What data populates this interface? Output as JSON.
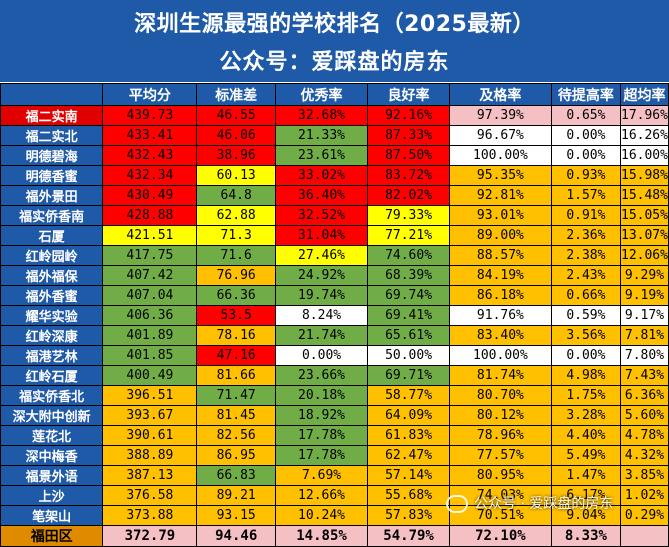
{
  "header": {
    "title": "深圳生源最强的学校排名（2025最新）",
    "subtitle": "公众号：爱踩盘的房东"
  },
  "colors": {
    "header_blue": "#1f5aa8",
    "red": "#ff0000",
    "yellow": "#ffff00",
    "orange": "#ffc000",
    "green": "#70ad47",
    "white": "#ffffff",
    "pink": "#f4c0c4"
  },
  "table": {
    "columns": [
      "",
      "平均分",
      "标准差",
      "优秀率",
      "良好率",
      "及格率",
      "待提高率",
      "超均率"
    ],
    "rows": [
      {
        "name": "福二实南",
        "values": [
          "439.73",
          "46.55",
          "32.68%",
          "92.16%",
          "97.39%",
          "0.65%",
          "17.96%"
        ],
        "colors": [
          "red",
          "red",
          "red",
          "red",
          "pink",
          "pink",
          "pink"
        ]
      },
      {
        "name": "福二实北",
        "values": [
          "433.41",
          "46.06",
          "21.33%",
          "87.33%",
          "96.67%",
          "0.00%",
          "16.26%"
        ],
        "colors": [
          "red",
          "red",
          "green",
          "red",
          "white",
          "white",
          "white"
        ]
      },
      {
        "name": "明德碧海",
        "values": [
          "432.43",
          "38.96",
          "23.61%",
          "87.50%",
          "100.00%",
          "0.00%",
          "16.00%"
        ],
        "colors": [
          "red",
          "red",
          "green",
          "red",
          "white",
          "white",
          "white"
        ]
      },
      {
        "name": "明德香蜜",
        "values": [
          "432.34",
          "60.13",
          "33.02%",
          "83.72%",
          "95.35%",
          "0.93%",
          "15.98%"
        ],
        "colors": [
          "red",
          "yellow",
          "red",
          "red",
          "orange",
          "orange",
          "orange"
        ]
      },
      {
        "name": "福外景田",
        "values": [
          "430.49",
          "64.8",
          "36.40%",
          "82.02%",
          "92.81%",
          "1.57%",
          "15.48%"
        ],
        "colors": [
          "red",
          "green",
          "red",
          "red",
          "orange",
          "orange",
          "orange"
        ]
      },
      {
        "name": "福实侨香南",
        "values": [
          "428.88",
          "62.88",
          "32.52%",
          "79.33%",
          "93.01%",
          "0.91%",
          "15.05%"
        ],
        "colors": [
          "red",
          "yellow",
          "red",
          "yellow",
          "orange",
          "orange",
          "orange"
        ]
      },
      {
        "name": "石厦",
        "values": [
          "421.51",
          "71.3",
          "31.04%",
          "77.21%",
          "89.00%",
          "2.36%",
          "13.07%"
        ],
        "colors": [
          "yellow",
          "yellow",
          "red",
          "yellow",
          "orange",
          "orange",
          "orange"
        ]
      },
      {
        "name": "红岭园岭",
        "values": [
          "417.75",
          "71.6",
          "27.46%",
          "74.60%",
          "88.57%",
          "2.38%",
          "12.06%"
        ],
        "colors": [
          "green",
          "green",
          "yellow",
          "green",
          "orange",
          "orange",
          "orange"
        ]
      },
      {
        "name": "福外福保",
        "values": [
          "407.42",
          "76.96",
          "24.92%",
          "68.39%",
          "84.19%",
          "2.43%",
          "9.29%"
        ],
        "colors": [
          "green",
          "orange",
          "green",
          "green",
          "orange",
          "orange",
          "orange"
        ]
      },
      {
        "name": "福外香蜜",
        "values": [
          "407.04",
          "66.36",
          "19.74%",
          "69.74%",
          "86.18%",
          "0.66%",
          "9.19%"
        ],
        "colors": [
          "green",
          "green",
          "green",
          "green",
          "orange",
          "orange",
          "orange"
        ]
      },
      {
        "name": "耀华实验",
        "values": [
          "406.36",
          "53.5",
          "8.24%",
          "69.41%",
          "91.76%",
          "0.59%",
          "9.17%"
        ],
        "colors": [
          "green",
          "red",
          "white",
          "green",
          "white",
          "white",
          "white"
        ]
      },
      {
        "name": "红岭深康",
        "values": [
          "401.89",
          "78.16",
          "21.74%",
          "65.61%",
          "83.40%",
          "3.56%",
          "7.81%"
        ],
        "colors": [
          "green",
          "orange",
          "green",
          "green",
          "orange",
          "orange",
          "orange"
        ]
      },
      {
        "name": "福港艺林",
        "values": [
          "401.85",
          "47.16",
          "0.00%",
          "50.00%",
          "100.00%",
          "0.00%",
          "7.80%"
        ],
        "colors": [
          "green",
          "red",
          "white",
          "white",
          "white",
          "white",
          "white"
        ]
      },
      {
        "name": "红岭石厦",
        "values": [
          "400.49",
          "81.66",
          "23.66%",
          "69.71%",
          "81.74%",
          "4.98%",
          "7.43%"
        ],
        "colors": [
          "green",
          "orange",
          "green",
          "green",
          "orange",
          "orange",
          "orange"
        ]
      },
      {
        "name": "福实侨香北",
        "values": [
          "396.51",
          "71.47",
          "20.18%",
          "58.77%",
          "80.70%",
          "1.75%",
          "6.36%"
        ],
        "colors": [
          "orange",
          "green",
          "green",
          "orange",
          "orange",
          "orange",
          "orange"
        ]
      },
      {
        "name": "深大附中创新",
        "values": [
          "393.67",
          "81.45",
          "18.92%",
          "64.09%",
          "80.12%",
          "3.28%",
          "5.60%"
        ],
        "colors": [
          "orange",
          "orange",
          "green",
          "orange",
          "orange",
          "orange",
          "orange"
        ]
      },
      {
        "name": "莲花北",
        "values": [
          "390.61",
          "82.56",
          "17.78%",
          "61.83%",
          "78.96%",
          "4.40%",
          "4.78%"
        ],
        "colors": [
          "orange",
          "orange",
          "green",
          "orange",
          "orange",
          "orange",
          "orange"
        ]
      },
      {
        "name": "深中梅香",
        "values": [
          "388.89",
          "86.95",
          "17.78%",
          "62.47%",
          "77.57%",
          "5.49%",
          "4.32%"
        ],
        "colors": [
          "orange",
          "orange",
          "green",
          "orange",
          "orange",
          "orange",
          "orange"
        ]
      },
      {
        "name": "福景外语",
        "values": [
          "387.13",
          "66.83",
          "7.69%",
          "57.14%",
          "80.95%",
          "1.47%",
          "3.85%"
        ],
        "colors": [
          "orange",
          "green",
          "orange",
          "orange",
          "orange",
          "orange",
          "orange"
        ]
      },
      {
        "name": "上沙",
        "values": [
          "376.58",
          "89.21",
          "12.66%",
          "55.68%",
          "74.03%",
          "6.17%",
          "1.02%"
        ],
        "colors": [
          "orange",
          "orange",
          "orange",
          "orange",
          "orange",
          "orange",
          "orange"
        ]
      },
      {
        "name": "笔架山",
        "values": [
          "373.88",
          "93.15",
          "10.24%",
          "57.83%",
          "70.51%",
          "9.04%",
          "0.29%"
        ],
        "colors": [
          "orange",
          "orange",
          "orange",
          "orange",
          "orange",
          "orange",
          "orange"
        ]
      }
    ],
    "total": {
      "name": "福田区",
      "values": [
        "372.79",
        "94.46",
        "14.85%",
        "54.79%",
        "72.10%",
        "8.33%",
        ""
      ]
    }
  },
  "watermark": "公众号 · 爱踩盘的房东"
}
